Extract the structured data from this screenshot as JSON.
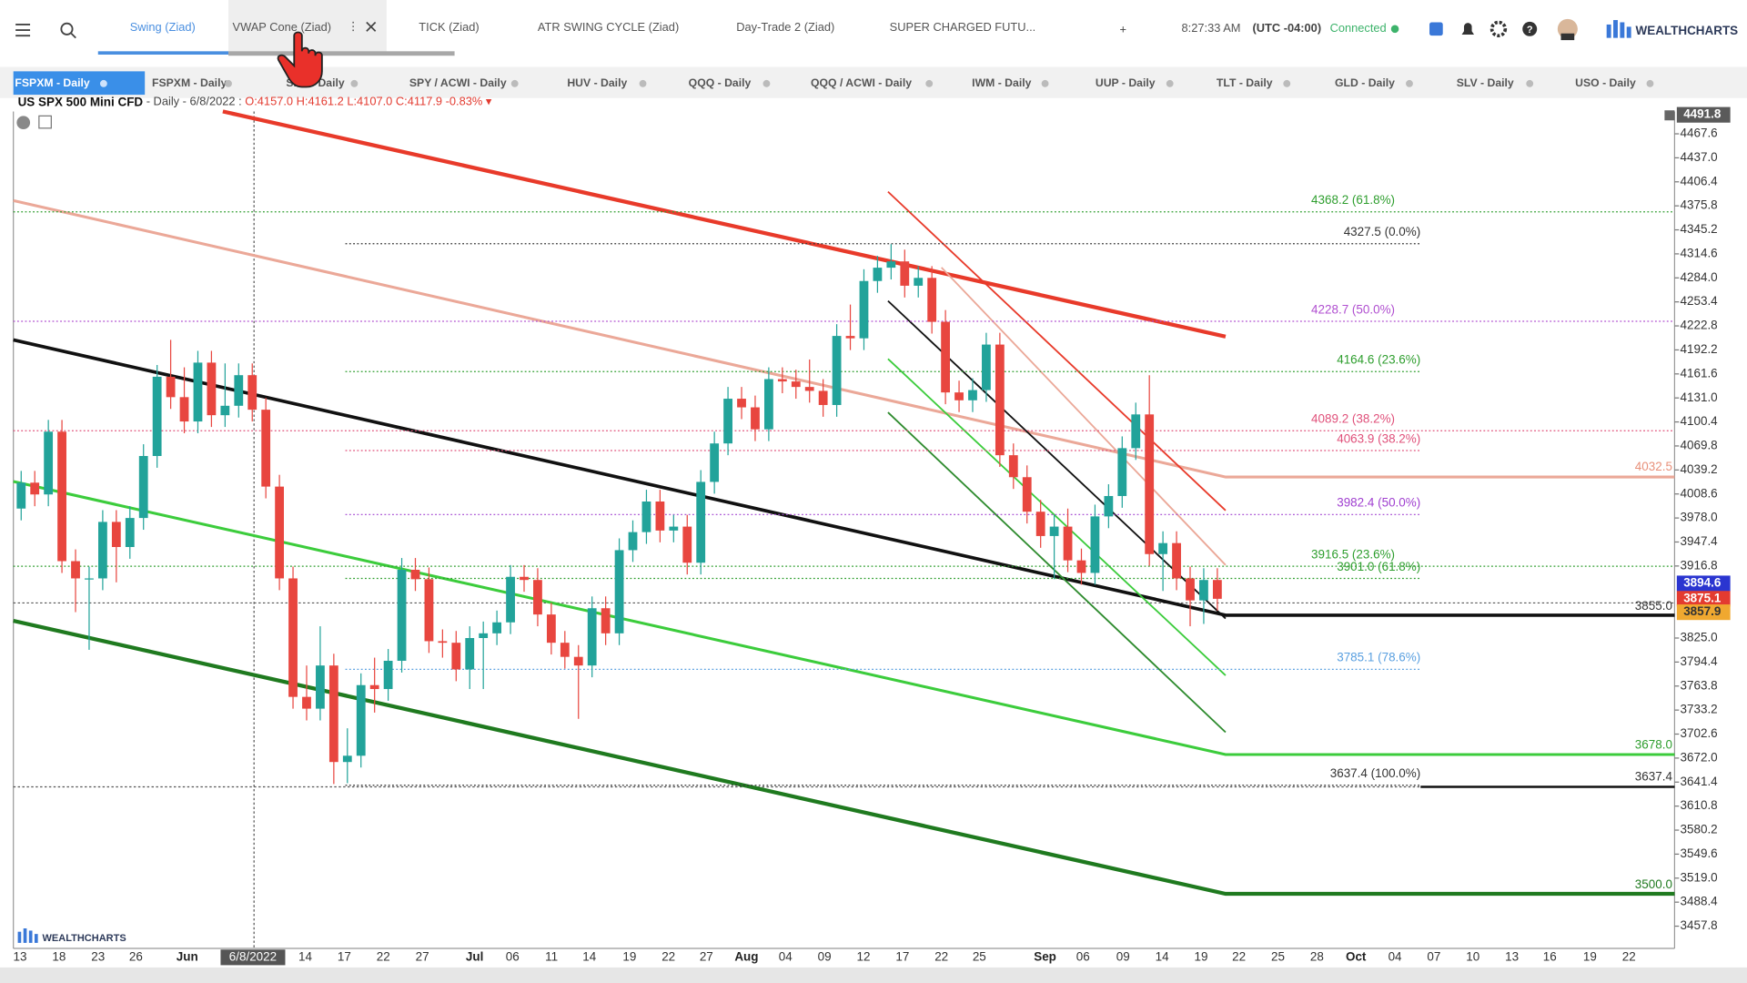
{
  "toolbar": {
    "tabs": [
      "Swing (Ziad)",
      "VWAP Cone (Ziad)",
      "TICK (Ziad)",
      "ATR SWING CYCLE (Ziad)",
      "Day-Trade 2 (Ziad)",
      "SUPER CHARGED FUTU..."
    ],
    "add": "+",
    "time": "8:27:33 AM",
    "timezone": "(UTC -04:00)",
    "status": "Connected",
    "brand": "WEALTHCHARTS"
  },
  "symbol_tabs": [
    "FSPXM - Daily",
    "FSPXM - Daily",
    "SPY - Daily",
    "SPY / ACWI - Daily",
    "HUV - Daily",
    "QQQ - Daily",
    "QQQ / ACWI - Daily",
    "IWM - Daily",
    "UUP - Daily",
    "TLT - Daily",
    "GLD - Daily",
    "SLV - Daily",
    "USO - Daily"
  ],
  "legend": {
    "symbol": "US SPX 500 Mini CFD",
    "interval": " - Daily - 6/8/2022 : ",
    "ohlc": "O:4157.0 H:4161.2 L:4107.0 C:4117.9 -0.83%"
  },
  "watermark": "WEALTHCHARTS",
  "chart_data": {
    "type": "candlestick",
    "up_color": "#22a39a",
    "down_color": "#e8463f",
    "open": [
      3990,
      4023,
      4008,
      4088,
      3923,
      3901,
      3901,
      3973,
      3941,
      3978,
      4057,
      4158,
      4132,
      4101,
      4176,
      4109,
      4121,
      4160,
      4116,
      4018,
      3901,
      3750,
      3735,
      3790,
      3667,
      3675,
      3765,
      3760,
      3796,
      3912,
      3900,
      3821,
      3819,
      3785,
      3825,
      3831,
      3845,
      3903,
      3899,
      3855,
      3819,
      3801,
      3790,
      3863,
      3831,
      3937,
      3960,
      3999,
      3962,
      3967,
      3921,
      4024,
      4073,
      4130,
      4119,
      4091,
      4155,
      4152,
      4145,
      4140,
      4122,
      4210,
      4207,
      4280,
      4297,
      4305,
      4274,
      4284,
      4228,
      4138,
      4128,
      4141,
      4199,
      4058,
      4030,
      3986,
      3955,
      3967,
      3924,
      3908,
      3980,
      4006,
      4067,
      4110,
      3932,
      3946,
      3901,
      3873,
      3899
    ],
    "high": [
      4038,
      4038,
      4103,
      4103,
      3938,
      3916,
      3988,
      3988,
      3993,
      4072,
      4173,
      4205,
      4170,
      4191,
      4191,
      4175,
      4175,
      4175,
      4131,
      4033,
      3916,
      3790,
      3840,
      3805,
      3710,
      3780,
      3800,
      3811,
      3927,
      3927,
      3915,
      3836,
      3834,
      3840,
      3846,
      3860,
      3918,
      3918,
      3914,
      3870,
      3834,
      3816,
      3878,
      3878,
      3952,
      3975,
      4014,
      4014,
      3982,
      3982,
      4039,
      4088,
      4145,
      4145,
      4134,
      4170,
      4170,
      4167,
      4180,
      4155,
      4225,
      4250,
      4295,
      4312,
      4327,
      4320,
      4299,
      4299,
      4243,
      4153,
      4156,
      4214,
      4214,
      4073,
      4045,
      4001,
      3982,
      3990,
      3939,
      3995,
      4021,
      4082,
      4125,
      4160,
      3961,
      3961,
      3916,
      3914,
      3914
    ],
    "low": [
      3975,
      3993,
      3993,
      3908,
      3858,
      3810,
      3886,
      3896,
      3926,
      3963,
      4042,
      4117,
      4086,
      4086,
      4094,
      4094,
      4106,
      4101,
      4003,
      3886,
      3735,
      3720,
      3720,
      3639,
      3640,
      3660,
      3730,
      3745,
      3781,
      3885,
      3806,
      3800,
      3770,
      3760,
      3760,
      3816,
      3830,
      3884,
      3840,
      3804,
      3786,
      3722,
      3775,
      3816,
      3816,
      3922,
      3945,
      3947,
      3947,
      3906,
      3906,
      4009,
      4058,
      4104,
      4076,
      4076,
      4137,
      4130,
      4125,
      4107,
      4107,
      4192,
      4192,
      4265,
      4282,
      4259,
      4259,
      4213,
      4123,
      4113,
      4113,
      4126,
      4043,
      4015,
      3971,
      3940,
      3900,
      3909,
      3893,
      3893,
      3965,
      3991,
      4052,
      3917,
      3885,
      3886,
      3840,
      3843,
      3860
    ],
    "close": [
      4023,
      4008,
      4088,
      3923,
      3901,
      3901,
      3973,
      3941,
      3978,
      4057,
      4158,
      4132,
      4101,
      4176,
      4109,
      4121,
      4160,
      4116,
      4018,
      3901,
      3750,
      3735,
      3790,
      3667,
      3675,
      3765,
      3760,
      3796,
      3912,
      3900,
      3821,
      3819,
      3785,
      3825,
      3831,
      3845,
      3903,
      3899,
      3855,
      3819,
      3801,
      3790,
      3863,
      3831,
      3937,
      3960,
      3999,
      3962,
      3967,
      3921,
      4024,
      4073,
      4130,
      4119,
      4091,
      4155,
      4152,
      4145,
      4140,
      4122,
      4210,
      4207,
      4280,
      4297,
      4305,
      4274,
      4284,
      4228,
      4138,
      4128,
      4141,
      4199,
      4058,
      4030,
      3986,
      3955,
      3967,
      3924,
      3908,
      3980,
      4006,
      4067,
      4110,
      3932,
      3946,
      3901,
      3873,
      3899,
      3875
    ],
    "ylim": [
      3429.4,
      4496.1
    ],
    "yticks": [
      4467.6,
      {
        "value": 4437,
        "label": "4437.0"
      },
      4406.4,
      4375.8,
      4345.2,
      4314.6,
      {
        "value": 4284,
        "label": "4284.0"
      },
      4253.4,
      4222.8,
      4192.2,
      4161.6,
      {
        "value": 4131,
        "label": "4131.0"
      },
      4100.4,
      4069.8,
      4039.2,
      4008.6,
      {
        "value": 3978,
        "label": "3978.0"
      },
      3947.4,
      3916.8,
      {
        "value": 3825,
        "label": "3825.0"
      },
      3794.4,
      3763.8,
      3733.2,
      3702.6,
      {
        "value": 3672,
        "label": "3672.0"
      },
      3641.4,
      3610.8,
      3580.2,
      3549.6,
      {
        "value": 3519,
        "label": "3519.0"
      },
      3488.4,
      3457.8
    ],
    "categories": [
      "13",
      "18",
      "23",
      "26",
      "Jun",
      "6/8/2022",
      "14",
      "17",
      "22",
      "27",
      "Jul",
      "06",
      "11",
      "14",
      "19",
      "22",
      "27",
      "Aug",
      "04",
      "09",
      "12",
      "17",
      "22",
      "25",
      "Sep",
      "06",
      "09",
      "14",
      "19",
      "22",
      "25",
      "28",
      "Oct",
      "04",
      "07",
      "10",
      "13",
      "16",
      "19",
      "22"
    ],
    "fib_levels": [
      {
        "label": "4368.2 (61.8%)",
        "value": 4368.2,
        "color": "#2e9e2e"
      },
      {
        "label": "4327.5 (0.0%)",
        "value": 4327.5,
        "color": "#333333"
      },
      {
        "label": "4228.7 (50.0%)",
        "value": 4228.7,
        "color": "#b04fd0"
      },
      {
        "label": "4164.6 (23.6%)",
        "value": 4164.6,
        "color": "#2e9e2e"
      },
      {
        "label": "4089.2 (38.2%)",
        "value": 4089.2,
        "color": "#e0507a"
      },
      {
        "label": "4063.9 (38.2%)",
        "value": 4063.9,
        "color": "#e0507a"
      },
      {
        "label": "3982.4 (50.0%)",
        "value": 3982.4,
        "color": "#a040d0"
      },
      {
        "label": "3916.5 (23.6%)",
        "value": 3916.5,
        "color": "#2e9e2e"
      },
      {
        "label": "3901.0 (61.8%)",
        "value": 3901,
        "color": "#2e9e2e"
      },
      {
        "label": "3785.1 (78.6%)",
        "value": 3785.1,
        "color": "#5aa0e0"
      },
      {
        "label": "3637.4 (100.0%)",
        "value": 3637.4,
        "color": "#333333"
      }
    ],
    "axis_tags": [
      {
        "value": 4491.8,
        "color": "#5a5a5a"
      },
      {
        "value": 3894.6,
        "color": "#2a35d0"
      },
      {
        "value": 3875.1,
        "color": "#e33b30"
      },
      {
        "value": 3857.9,
        "color": "#f0a830"
      }
    ],
    "line_tags": [
      {
        "value": 4032.5,
        "color": "#e8907a"
      },
      {
        "value": 3855,
        "label": "3855.0",
        "color": "#333333"
      },
      {
        "value": 3678,
        "label": "3678.0",
        "color": "#2e9e2e"
      },
      {
        "value": 3637.4,
        "color": "#333333"
      },
      {
        "value": 3500,
        "label": "3500.0",
        "color": "#1f7a1f"
      }
    ]
  }
}
